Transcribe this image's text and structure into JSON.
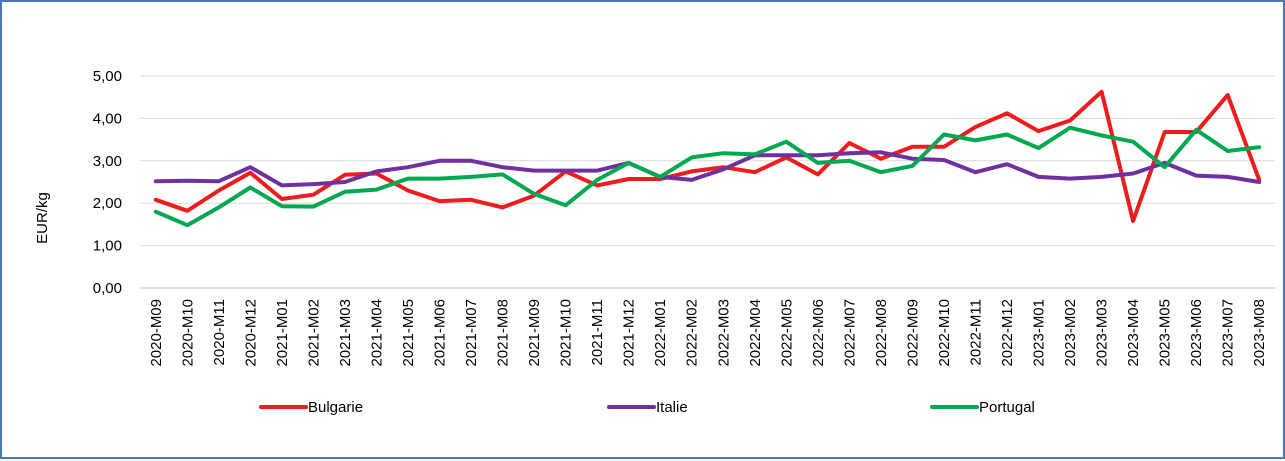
{
  "chart_data": {
    "type": "line",
    "title": "",
    "xlabel": "",
    "ylabel": "EUR/kg",
    "ylim": [
      0,
      5
    ],
    "yticks": [
      "0,00",
      "1,00",
      "2,00",
      "3,00",
      "4,00",
      "5,00"
    ],
    "grid": true,
    "legend_position": "bottom",
    "categories": [
      "2020-M09",
      "2020-M10",
      "2020-M11",
      "2020-M12",
      "2021-M01",
      "2021-M02",
      "2021-M03",
      "2021-M04",
      "2021-M05",
      "2021-M06",
      "2021-M07",
      "2021-M08",
      "2021-M09",
      "2021-M10",
      "2021-M11",
      "2021-M12",
      "2022-M01",
      "2022-M02",
      "2022-M03",
      "2022-M04",
      "2022-M05",
      "2022-M06",
      "2022-M07",
      "2022-M08",
      "2022-M09",
      "2022-M10",
      "2022-M11",
      "2022-M12",
      "2023-M01",
      "2023-M02",
      "2023-M03",
      "2023-M04",
      "2023-M05",
      "2023-M06",
      "2023-M07",
      "2023-M08"
    ],
    "series": [
      {
        "name": "Bulgarie",
        "color": "#ee1c1c",
        "values": [
          2.08,
          1.82,
          2.3,
          2.72,
          2.1,
          2.2,
          2.67,
          2.7,
          2.3,
          2.05,
          2.08,
          1.9,
          2.18,
          2.75,
          2.42,
          2.57,
          2.57,
          2.75,
          2.85,
          2.73,
          3.08,
          2.68,
          3.42,
          3.05,
          3.33,
          3.33,
          3.8,
          4.12,
          3.7,
          3.95,
          4.63,
          1.58,
          3.68,
          3.68,
          4.55,
          2.55
        ]
      },
      {
        "name": "Italie",
        "color": "#7030a0",
        "values": [
          2.52,
          2.53,
          2.52,
          2.85,
          2.42,
          2.45,
          2.5,
          2.75,
          2.85,
          3.0,
          3.0,
          2.85,
          2.77,
          2.77,
          2.77,
          2.95,
          2.62,
          2.55,
          2.8,
          3.13,
          3.13,
          3.13,
          3.18,
          3.2,
          3.05,
          3.02,
          2.73,
          2.92,
          2.62,
          2.58,
          2.62,
          2.7,
          2.95,
          2.65,
          2.62,
          2.5
        ]
      },
      {
        "name": "Portugal",
        "color": "#00a84f",
        "values": [
          1.8,
          1.48,
          1.9,
          2.37,
          1.93,
          1.92,
          2.27,
          2.32,
          2.58,
          2.58,
          2.62,
          2.68,
          2.22,
          1.95,
          2.55,
          2.95,
          2.62,
          3.08,
          3.18,
          3.15,
          3.45,
          2.95,
          3.0,
          2.73,
          2.88,
          3.62,
          3.48,
          3.62,
          3.3,
          3.78,
          3.6,
          3.45,
          2.85,
          3.73,
          3.23,
          3.32
        ]
      }
    ]
  }
}
